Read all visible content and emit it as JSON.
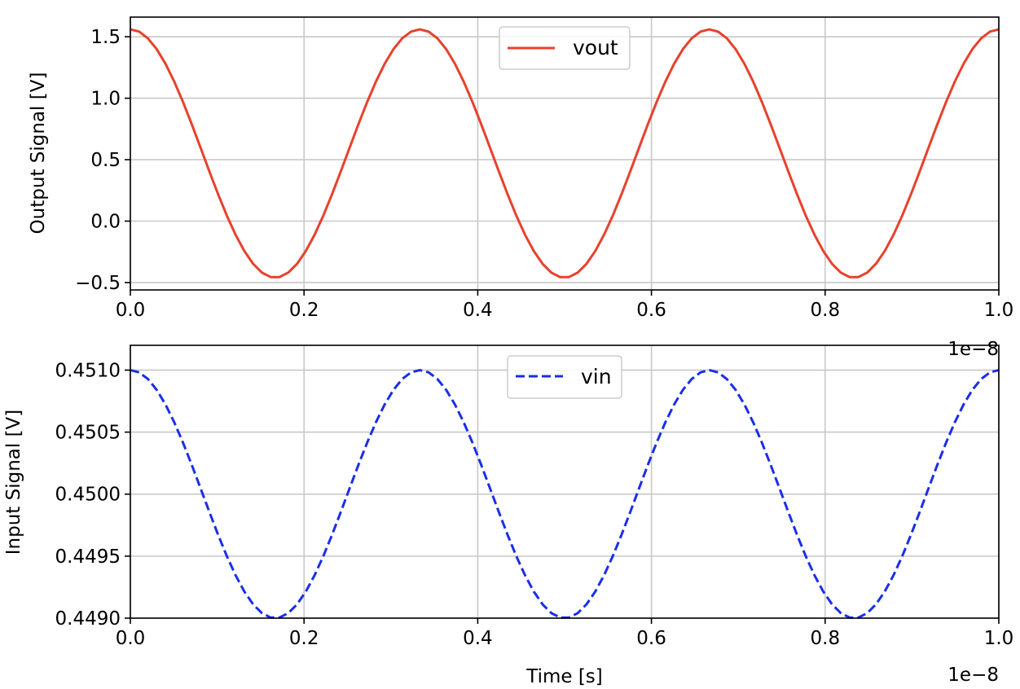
{
  "chart_data": [
    {
      "type": "line",
      "ylabel": "Output Signal [V]",
      "xlabel": "",
      "xlim": [
        0.0,
        1.0
      ],
      "ylim": [
        -0.56,
        1.66
      ],
      "x_offset_label": "1e−8",
      "x_ticks": [
        "0.0",
        "0.2",
        "0.4",
        "0.6",
        "0.8",
        "1.0"
      ],
      "y_ticks": [
        "−0.5",
        "0.0",
        "0.5",
        "1.0",
        "1.5"
      ],
      "y_tick_values": [
        -0.5,
        0.0,
        0.5,
        1.0,
        1.5
      ],
      "grid": true,
      "legend_position": "top-center",
      "series": [
        {
          "name": "vout",
          "color": "#e8412c",
          "style": "solid",
          "function": "cosine",
          "offset": 0.55,
          "amplitude": 1.01,
          "period": 0.3333,
          "x_start": 0.0,
          "x_end": 1.0,
          "points": 100
        }
      ]
    },
    {
      "type": "line",
      "ylabel": "Input Signal [V]",
      "xlabel": "Time [s]",
      "xlim": [
        0.0,
        1.0
      ],
      "ylim": [
        0.449,
        0.4512
      ],
      "x_offset_label": "1e−8",
      "x_ticks": [
        "0.0",
        "0.2",
        "0.4",
        "0.6",
        "0.8",
        "1.0"
      ],
      "y_ticks": [
        "0.4490",
        "0.4495",
        "0.4500",
        "0.4505",
        "0.4510"
      ],
      "y_tick_values": [
        0.449,
        0.4495,
        0.45,
        0.4505,
        0.451
      ],
      "grid": true,
      "legend_position": "top-center",
      "series": [
        {
          "name": "vin",
          "color": "#1a2ee8",
          "style": "dashed",
          "function": "cosine",
          "offset": 0.45,
          "amplitude": 0.001,
          "period": 0.3333,
          "x_start": 0.0,
          "x_end": 1.0,
          "points": 100
        }
      ]
    }
  ]
}
